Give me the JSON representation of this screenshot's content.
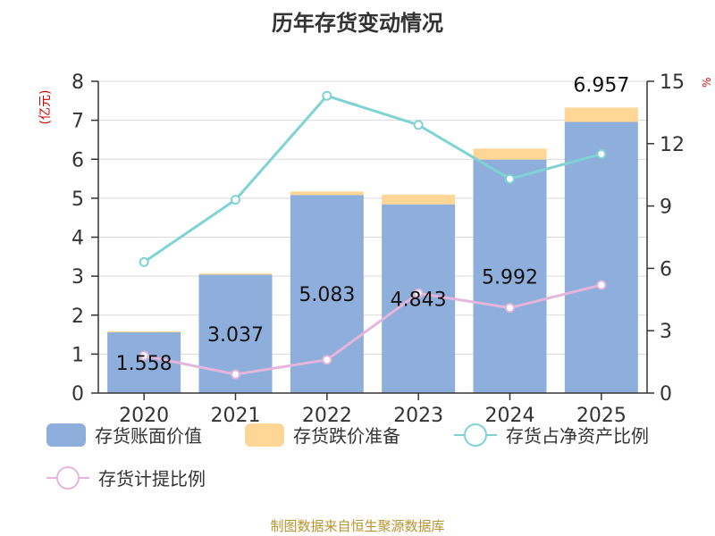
{
  "title": "历年存货变动情况",
  "y_left_unit": "(亿元)",
  "y_right_unit": "%",
  "legend": {
    "book_value": "存货账面价值",
    "reserve": "存货跌价准备",
    "net_asset_ratio": "存货占净资产比例",
    "provision_ratio": "存货计提比例"
  },
  "source": "制图数据来自恒生聚源数据库",
  "colors": {
    "book_value": "#8eaedb",
    "reserve": "#ffd696",
    "net_asset_ratio": "#7fd3d4",
    "provision_ratio": "#e5b6dc",
    "axis": "#333333",
    "grid": "#d9d9d9",
    "unit": "#d40000",
    "source": "#b8932f"
  },
  "chart_data": {
    "type": "bar",
    "title": "历年存货变动情况",
    "categories": [
      "2020",
      "2021",
      "2022",
      "2023",
      "2024",
      "2025"
    ],
    "y_left": {
      "min": 0,
      "max": 8,
      "ticks": [
        0,
        1,
        2,
        3,
        4,
        5,
        6,
        7,
        8
      ],
      "label": "(亿元)"
    },
    "y_right": {
      "min": 0,
      "max": 15,
      "ticks": [
        0,
        3,
        6,
        9,
        12,
        15
      ],
      "label": "%"
    },
    "grid": true,
    "legend_position": "bottom",
    "series": [
      {
        "name": "存货账面价值",
        "type": "bar",
        "axis": "left",
        "stack": "inventory",
        "values": [
          1.558,
          3.037,
          5.083,
          4.843,
          5.992,
          6.957
        ],
        "data_labels": [
          "1.558",
          "3.037",
          "5.083",
          "4.843",
          "5.992",
          "6.957"
        ]
      },
      {
        "name": "存货跌价准备",
        "type": "bar",
        "axis": "left",
        "stack": "inventory",
        "values": [
          0.03,
          0.03,
          0.09,
          0.25,
          0.28,
          0.37
        ]
      },
      {
        "name": "存货占净资产比例",
        "type": "line",
        "axis": "right",
        "values": [
          6.3,
          9.3,
          14.3,
          12.9,
          10.3,
          11.5
        ]
      },
      {
        "name": "存货计提比例",
        "type": "line",
        "axis": "right",
        "values": [
          1.8,
          0.9,
          1.6,
          4.8,
          4.1,
          5.2
        ]
      }
    ]
  }
}
